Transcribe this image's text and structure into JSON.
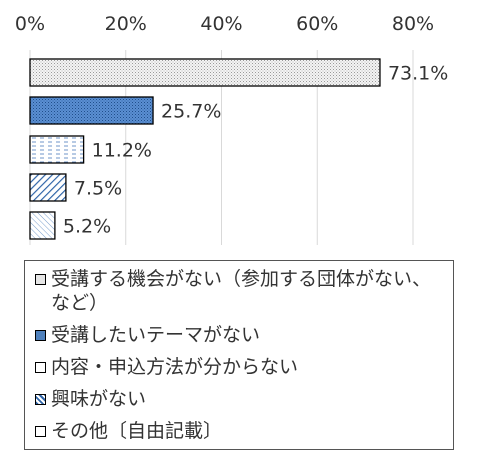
{
  "chart_data": {
    "type": "bar",
    "orientation": "horizontal",
    "categories": [
      "受講する機会がない（参加する団体がない、など）",
      "受講したいテーマがない",
      "内容・申込方法が分からない",
      "興味がない",
      "その他〔自由記載〕"
    ],
    "values": [
      73.1,
      25.7,
      11.2,
      7.5,
      5.2
    ],
    "data_labels": [
      "73.1%",
      "25.7%",
      "11.2%",
      "7.5%",
      "5.2%"
    ],
    "xlim": [
      0,
      80
    ],
    "x_ticks": [
      "0%",
      "20%",
      "40%",
      "60%",
      "80%"
    ],
    "grid": true,
    "legend_position": "bottom",
    "colors": [
      "#f2f2f2",
      "#4f81bd",
      "#ffffff",
      "#4f81bd",
      "#ffffff"
    ]
  }
}
